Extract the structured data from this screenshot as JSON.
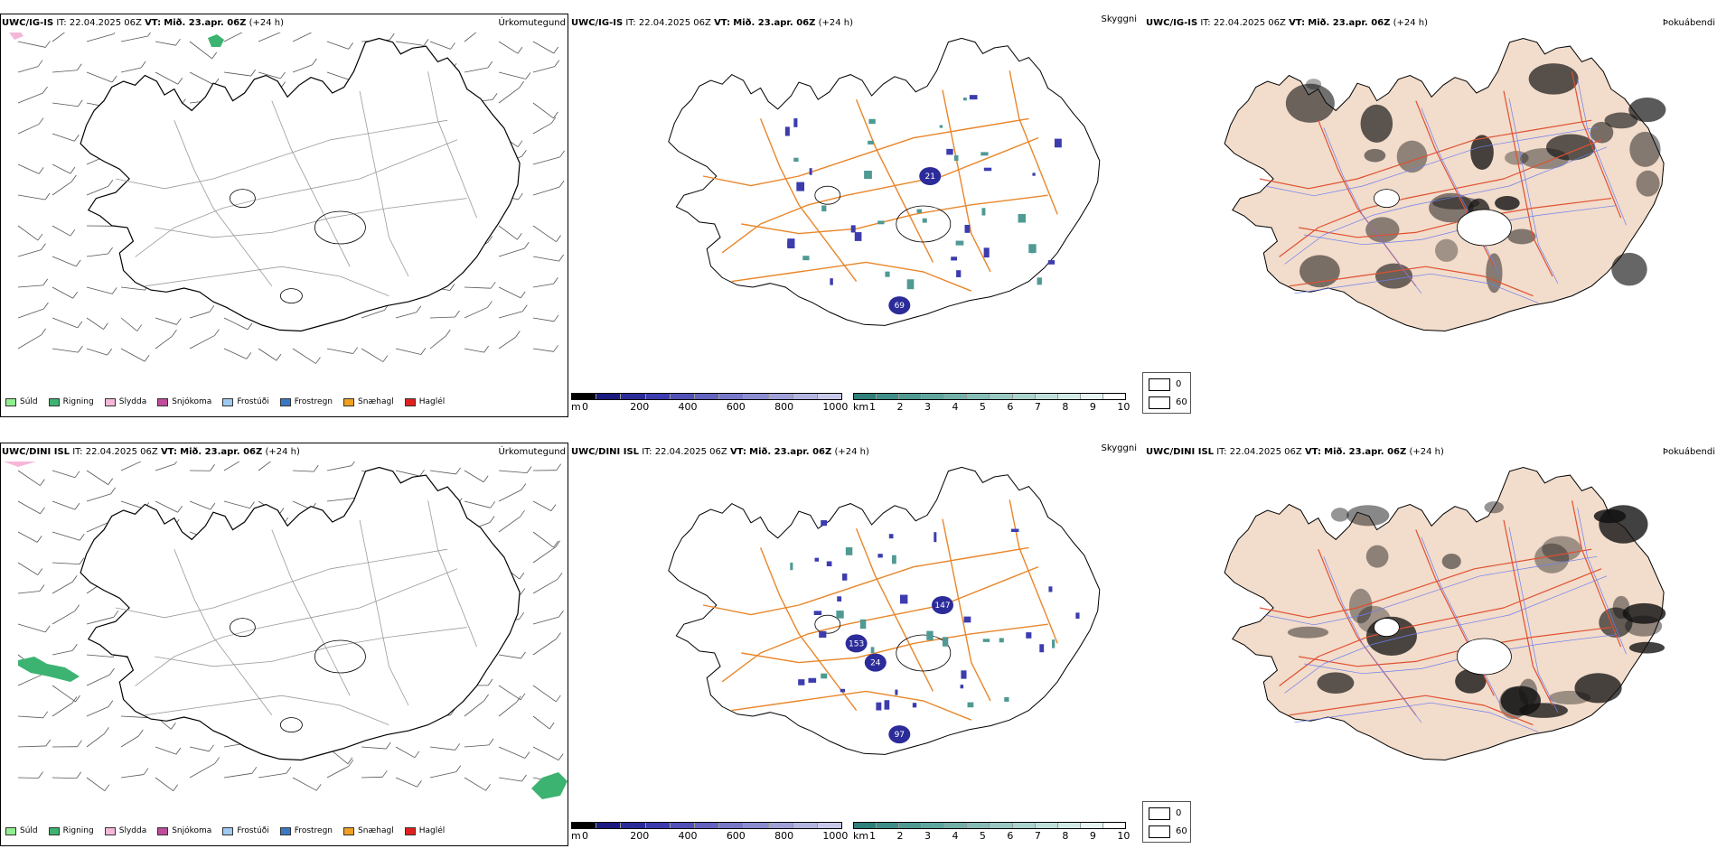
{
  "rows": [
    {
      "model": "UWC/IG-IS",
      "it_label": "IT:",
      "it_value": "22.04.2025 06Z",
      "vt_label": "VT:",
      "vt_value": "Mið. 23.apr. 06Z",
      "lead": "(+24 h)",
      "precip_title": "Úrkomutegund",
      "vis_title": "Skyggni",
      "fog_title": "Þokuábendi",
      "vis_markers": [
        "21",
        "69"
      ]
    },
    {
      "model": "UWC/DINI ISL",
      "it_label": "IT:",
      "it_value": "22.04.2025 06Z",
      "vt_label": "VT:",
      "vt_value": "Mið. 23.apr. 06Z",
      "lead": "(+24 h)",
      "precip_title": "Úrkomutegund",
      "vis_title": "Skyggni",
      "fog_title": "Þokuábendi",
      "vis_markers": [
        "147",
        "153",
        "24",
        "97"
      ]
    }
  ],
  "precip_legend": [
    {
      "label": "Súld",
      "color": "#90ee90"
    },
    {
      "label": "Rigning",
      "color": "#3cb371"
    },
    {
      "label": "Slydda",
      "color": "#f5b7d8"
    },
    {
      "label": "Snjókoma",
      "color": "#c04c9c"
    },
    {
      "label": "Frostúði",
      "color": "#9ec9f0"
    },
    {
      "label": "Frostregn",
      "color": "#3b78c3"
    },
    {
      "label": "Snæhagl",
      "color": "#f0a020"
    },
    {
      "label": "Haglél",
      "color": "#e02020"
    }
  ],
  "colorbar_m": {
    "unit": "m",
    "ticks": [
      "0",
      "200",
      "400",
      "600",
      "800",
      "1000"
    ],
    "colors": [
      "#000000",
      "#1a1a80",
      "#2b2b9a",
      "#3c3caf",
      "#5050b8",
      "#6464c0",
      "#7878c8",
      "#8c8cd0",
      "#a0a0d8",
      "#b4b4e0",
      "#c8c8e8"
    ]
  },
  "colorbar_km": {
    "unit": "km",
    "ticks": [
      "1",
      "2",
      "3",
      "4",
      "5",
      "6",
      "7",
      "8",
      "9",
      "10"
    ],
    "colors": [
      "#2f7f7a",
      "#3f8f88",
      "#4f9a93",
      "#60a59e",
      "#72b0a9",
      "#85bcb5",
      "#98c8c1",
      "#abd3cd",
      "#bfded9",
      "#d2e9e5",
      "#e6f4f2",
      "#ffffff"
    ]
  },
  "fog_legend": [
    {
      "label": "0",
      "color": "#000000"
    },
    {
      "label": "60",
      "color": "#ffffff"
    }
  ],
  "colors": {
    "roads_orange": "#e8862a",
    "roads_fog": "#e05030",
    "rivers": "#6c7ef0",
    "land_fog": "#f2dccb",
    "coast": "#000000"
  }
}
